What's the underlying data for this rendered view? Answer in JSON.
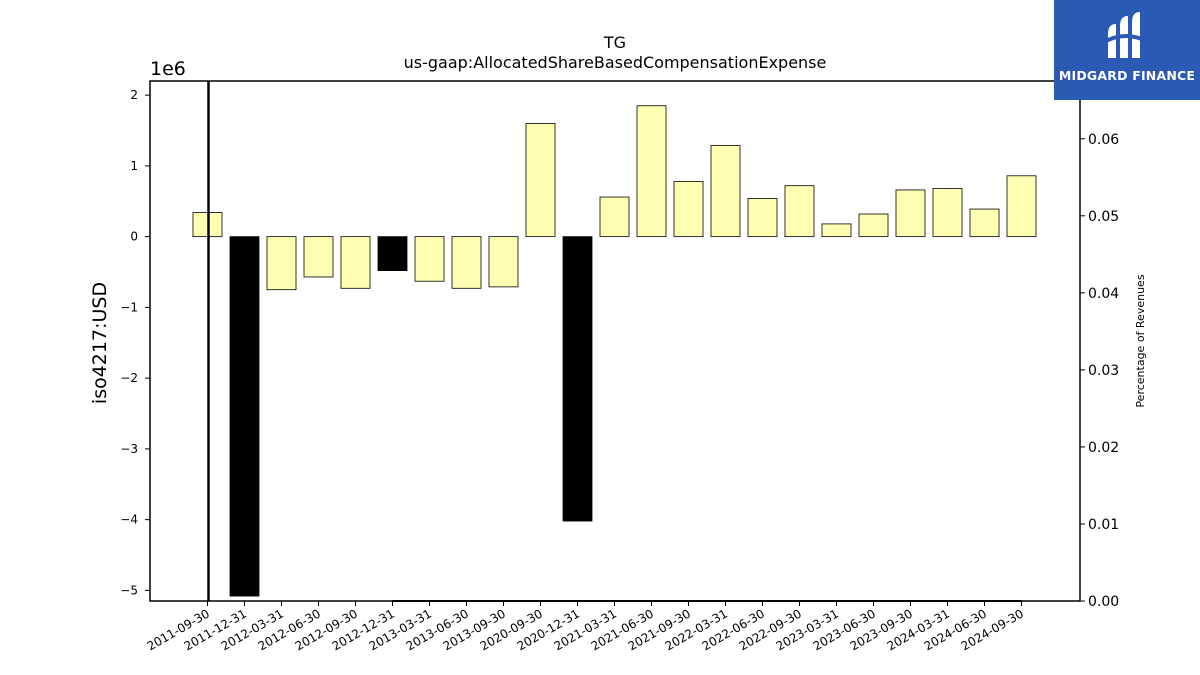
{
  "chart_data": {
    "type": "bar",
    "title": "TG",
    "subtitle": "us-gaap:AllocatedShareBasedCompensationExpense",
    "ylabel": "iso4217:USD",
    "y2label": "Percentage of Revenues",
    "y_offset_label": "1e6",
    "ylim": [
      -5.15,
      2.2
    ],
    "y2lim": [
      0.0,
      0.0675
    ],
    "yticks": [
      2,
      1,
      0,
      -1,
      -2,
      -3,
      -4,
      -5
    ],
    "y2ticks": [
      0.06,
      0.05,
      0.04,
      0.03,
      0.02,
      0.01,
      0.0
    ],
    "ytick_labels": [
      "2",
      "1",
      "0",
      "−1",
      "−2",
      "−3",
      "−4",
      "−5"
    ],
    "y2tick_labels": [
      "0.06",
      "0.05",
      "0.04",
      "0.03",
      "0.02",
      "0.01",
      "0.00"
    ],
    "categories": [
      "2011-09-30",
      "2011-12-31",
      "2012-03-31",
      "2012-06-30",
      "2012-09-30",
      "2012-12-31",
      "2013-03-31",
      "2013-06-30",
      "2013-09-30",
      "2020-09-30",
      "2020-12-31",
      "2021-03-31",
      "2021-06-30",
      "2021-09-30",
      "2022-03-31",
      "2022-06-30",
      "2022-09-30",
      "2023-03-31",
      "2023-06-30",
      "2023-09-30",
      "2024-03-31",
      "2024-06-30",
      "2024-09-30"
    ],
    "values": [
      0.34,
      -5.08,
      -0.75,
      -0.57,
      -0.73,
      -0.48,
      -0.63,
      -0.73,
      -0.71,
      1.6,
      -4.02,
      0.56,
      1.85,
      0.78,
      1.29,
      0.54,
      0.72,
      0.18,
      0.32,
      0.66,
      0.68,
      0.39,
      0.86
    ],
    "bar_colors": [
      "#ffffb3",
      "#000000",
      "#ffffb3",
      "#ffffb3",
      "#ffffb3",
      "#000000",
      "#ffffb3",
      "#ffffb3",
      "#ffffb3",
      "#ffffb3",
      "#000000",
      "#ffffb3",
      "#ffffb3",
      "#ffffb3",
      "#ffffb3",
      "#ffffb3",
      "#ffffb3",
      "#ffffb3",
      "#ffffb3",
      "#ffffb3",
      "#ffffb3",
      "#ffffb3",
      "#ffffb3"
    ],
    "pct_revenue_line": {
      "x_start_index": 5,
      "x_end_index": 22,
      "value": 0.0,
      "color": "#000000"
    },
    "vertical_line_index": 0,
    "grid": false,
    "legend": "none"
  },
  "logo": {
    "text": "MIDGARD FINANCE",
    "background": "#2a5ab3",
    "icon": "midgard-logo-icon"
  }
}
